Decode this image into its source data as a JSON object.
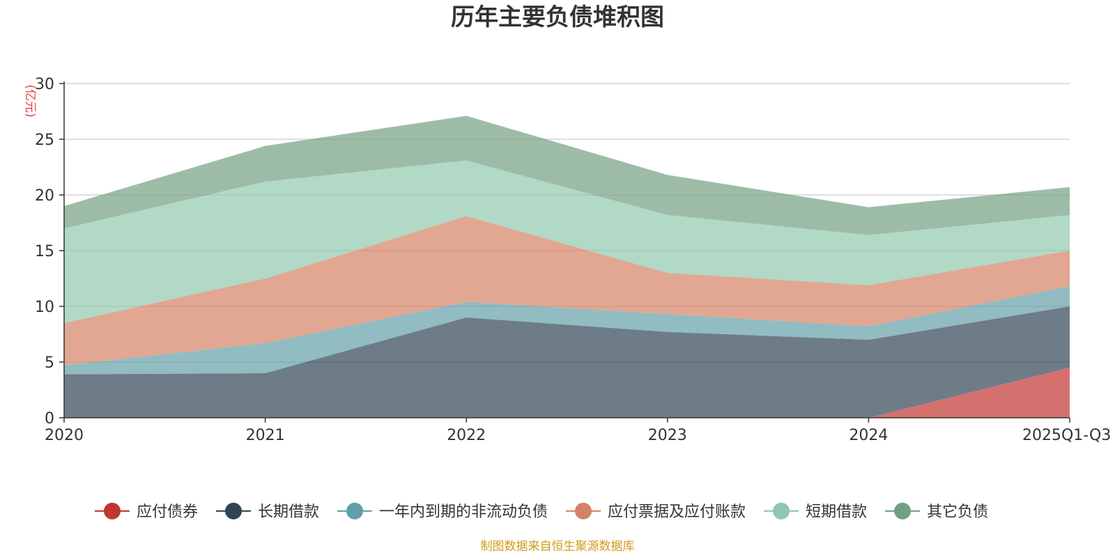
{
  "chart_data": {
    "type": "area",
    "stacked": true,
    "title": "历年主要负债堆积图",
    "unit_label": "(亿元)",
    "categories": [
      "2020",
      "2021",
      "2022",
      "2023",
      "2024",
      "2025Q1-Q3"
    ],
    "ylim": [
      0,
      30
    ],
    "yticks": [
      "0",
      "5",
      "10",
      "15",
      "20",
      "25",
      "30"
    ],
    "grid": true,
    "legend_position": "bottom",
    "series": [
      {
        "name": "应付债券",
        "color": "#c23531",
        "values": [
          0,
          0,
          0,
          0,
          0,
          4.5
        ]
      },
      {
        "name": "长期借款",
        "color": "#2f4554",
        "values": [
          3.9,
          4.0,
          9.0,
          7.7,
          7.0,
          5.5
        ]
      },
      {
        "name": "一年内到期的非流动负债",
        "color": "#61a0a8",
        "values": [
          0.8,
          2.7,
          1.4,
          1.6,
          1.2,
          1.8
        ]
      },
      {
        "name": "应付票据及应付账款",
        "color": "#d48265",
        "values": [
          3.8,
          5.8,
          7.7,
          3.7,
          3.7,
          3.2
        ]
      },
      {
        "name": "短期借款",
        "color": "#91c7ae",
        "values": [
          8.5,
          8.7,
          5.0,
          5.2,
          4.5,
          3.2
        ]
      },
      {
        "name": "其它负债",
        "color": "#749f83",
        "values": [
          2.0,
          3.2,
          4.0,
          3.6,
          2.5,
          2.5
        ]
      }
    ]
  },
  "footer": {
    "source": "制图数据来自恒生聚源数据库"
  }
}
